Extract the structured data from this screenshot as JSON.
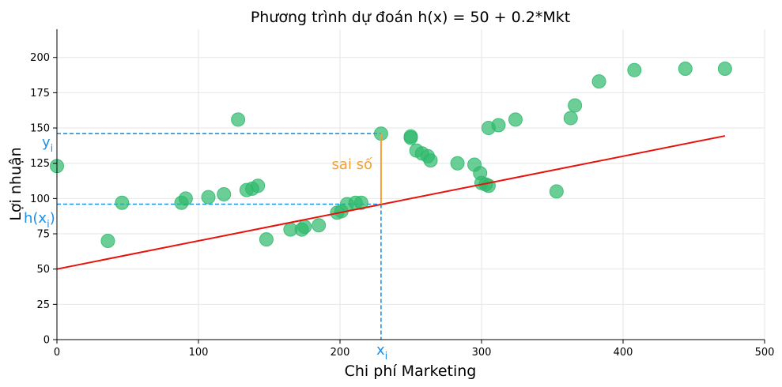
{
  "chart_data": {
    "type": "scatter",
    "title": "Phương trình dự đoán h(x) = 50 + 0.2*Mkt",
    "xlabel": "Chi phí Marketing",
    "ylabel": "Lợi nhuận",
    "xlim": [
      0,
      500
    ],
    "ylim": [
      0,
      220
    ],
    "xticks": [
      0,
      100,
      200,
      300,
      400,
      500
    ],
    "yticks": [
      0,
      25,
      50,
      75,
      100,
      125,
      150,
      175,
      200
    ],
    "grid": true,
    "colors": {
      "points": "#2db96b",
      "line": "#e8120c",
      "error": "#f5a030",
      "guides": "#1e90e8"
    },
    "points": [
      [
        0,
        123
      ],
      [
        36,
        70
      ],
      [
        46,
        97
      ],
      [
        88,
        97
      ],
      [
        91,
        100
      ],
      [
        107,
        101
      ],
      [
        118,
        103
      ],
      [
        128,
        156
      ],
      [
        134,
        106
      ],
      [
        138,
        107
      ],
      [
        142,
        109
      ],
      [
        148,
        71
      ],
      [
        165,
        78
      ],
      [
        173,
        78
      ],
      [
        175,
        80
      ],
      [
        185,
        81
      ],
      [
        198,
        90
      ],
      [
        201,
        91
      ],
      [
        205,
        96
      ],
      [
        211,
        97
      ],
      [
        215,
        97
      ],
      [
        229,
        146
      ],
      [
        250,
        144
      ],
      [
        250,
        143
      ],
      [
        254,
        134
      ],
      [
        258,
        132
      ],
      [
        262,
        130
      ],
      [
        264,
        127
      ],
      [
        283,
        125
      ],
      [
        295,
        124
      ],
      [
        299,
        118
      ],
      [
        300,
        111
      ],
      [
        303,
        110
      ],
      [
        305,
        109
      ],
      [
        305,
        150
      ],
      [
        312,
        152
      ],
      [
        324,
        156
      ],
      [
        353,
        105
      ],
      [
        363,
        157
      ],
      [
        366,
        166
      ],
      [
        383,
        183
      ],
      [
        408,
        191
      ],
      [
        444,
        192
      ],
      [
        472,
        192
      ]
    ],
    "regression_line": {
      "intercept": 50,
      "slope": 0.2,
      "x_range": [
        0,
        472
      ]
    },
    "highlight": {
      "x": 229,
      "y": 146,
      "yhat": 96
    },
    "annotations": {
      "y_label": "y",
      "h_label": "h(x",
      "x_label": "x",
      "subscript": "i",
      "h_close": ")",
      "error_label": "sai số"
    }
  }
}
